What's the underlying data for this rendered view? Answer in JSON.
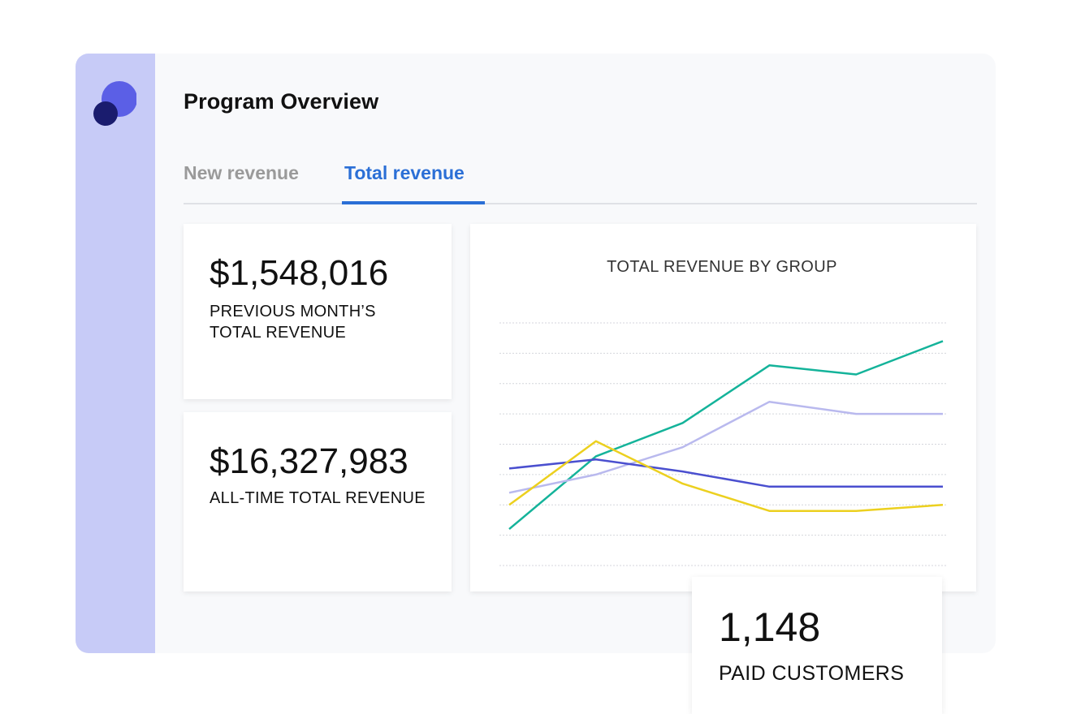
{
  "app": {
    "logo_icon": "brand-logo-icon",
    "accent_color": "#5b5fe6",
    "sidebar_color": "#c7cbf7"
  },
  "header": {
    "title": "Program Overview"
  },
  "tabs": [
    {
      "label": "New revenue",
      "active": false
    },
    {
      "label": "Total revenue",
      "active": true
    }
  ],
  "stats": {
    "previous_month": {
      "value": "$1,548,016",
      "label": "PREVIOUS MONTH’S TOTAL REVENUE"
    },
    "all_time": {
      "value": "$16,327,983",
      "label": "ALL-TIME TOTAL REVENUE"
    },
    "paid_customers": {
      "value": "1,148",
      "label": "PAID CUSTOMERS"
    }
  },
  "chart_data": {
    "type": "line",
    "title": "TOTAL REVENUE BY GROUP",
    "xlabel": "",
    "ylabel": "",
    "x": [
      1,
      2,
      3,
      4,
      5,
      6
    ],
    "ylim": [
      0,
      8
    ],
    "grid": true,
    "series": [
      {
        "color": "#14b39a",
        "values": [
          1.2,
          3.6,
          4.7,
          6.6,
          6.3,
          7.4
        ]
      },
      {
        "color": "#b9b9ee",
        "values": [
          2.4,
          3.0,
          3.9,
          5.4,
          5.0,
          5.0
        ]
      },
      {
        "color": "#4a4fcf",
        "values": [
          3.2,
          3.5,
          3.1,
          2.6,
          2.6,
          2.6
        ]
      },
      {
        "color": "#ecd01f",
        "values": [
          2.0,
          4.1,
          2.7,
          1.8,
          1.8,
          2.0
        ]
      }
    ]
  }
}
